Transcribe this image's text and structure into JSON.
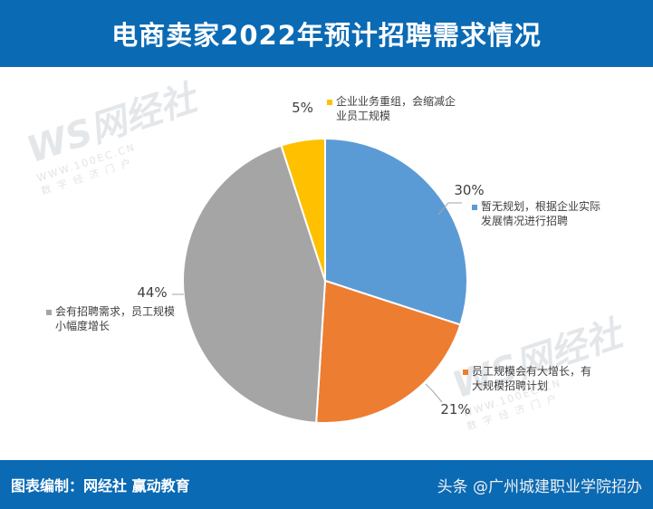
{
  "header": {
    "title": "电商卖家2022年预计招聘需求情况"
  },
  "watermark": {
    "logo": "WS网经社",
    "url": "WWW.100EC.CN",
    "sub": "数 字 经 济 门 户"
  },
  "footer": {
    "credit": "图表编制：网经社 赢动教育",
    "source": "头条 @广州城建职业学院招办"
  },
  "colors": {
    "header_bg": "#0a6ab4"
  },
  "chart_data": {
    "type": "pie",
    "title": "电商卖家2022年预计招聘需求情况",
    "slices": [
      {
        "label": "暂无规划，根据企业实际发展情况进行招聘",
        "lines": [
          "暂无规划，根据企业实际",
          "发展情况进行招聘"
        ],
        "value": 30,
        "pct_label": "30%",
        "color": "#5b9bd5"
      },
      {
        "label": "员工规模会有大增长，有大规模招聘计划",
        "lines": [
          "员工规模会有大增长，有",
          "大规模招聘计划"
        ],
        "value": 21,
        "pct_label": "21%",
        "color": "#ed7d31"
      },
      {
        "label": "会有招聘需求，员工规模小幅度增长",
        "lines": [
          "会有招聘需求，员工规模",
          "小幅度增长"
        ],
        "value": 44,
        "pct_label": "44%",
        "color": "#a5a5a5"
      },
      {
        "label": "企业业务重组，会缩减企业员工规模",
        "lines": [
          "企业业务重组，会缩减企",
          "业员工规模"
        ],
        "value": 5,
        "pct_label": "5%",
        "color": "#ffc000"
      }
    ]
  }
}
